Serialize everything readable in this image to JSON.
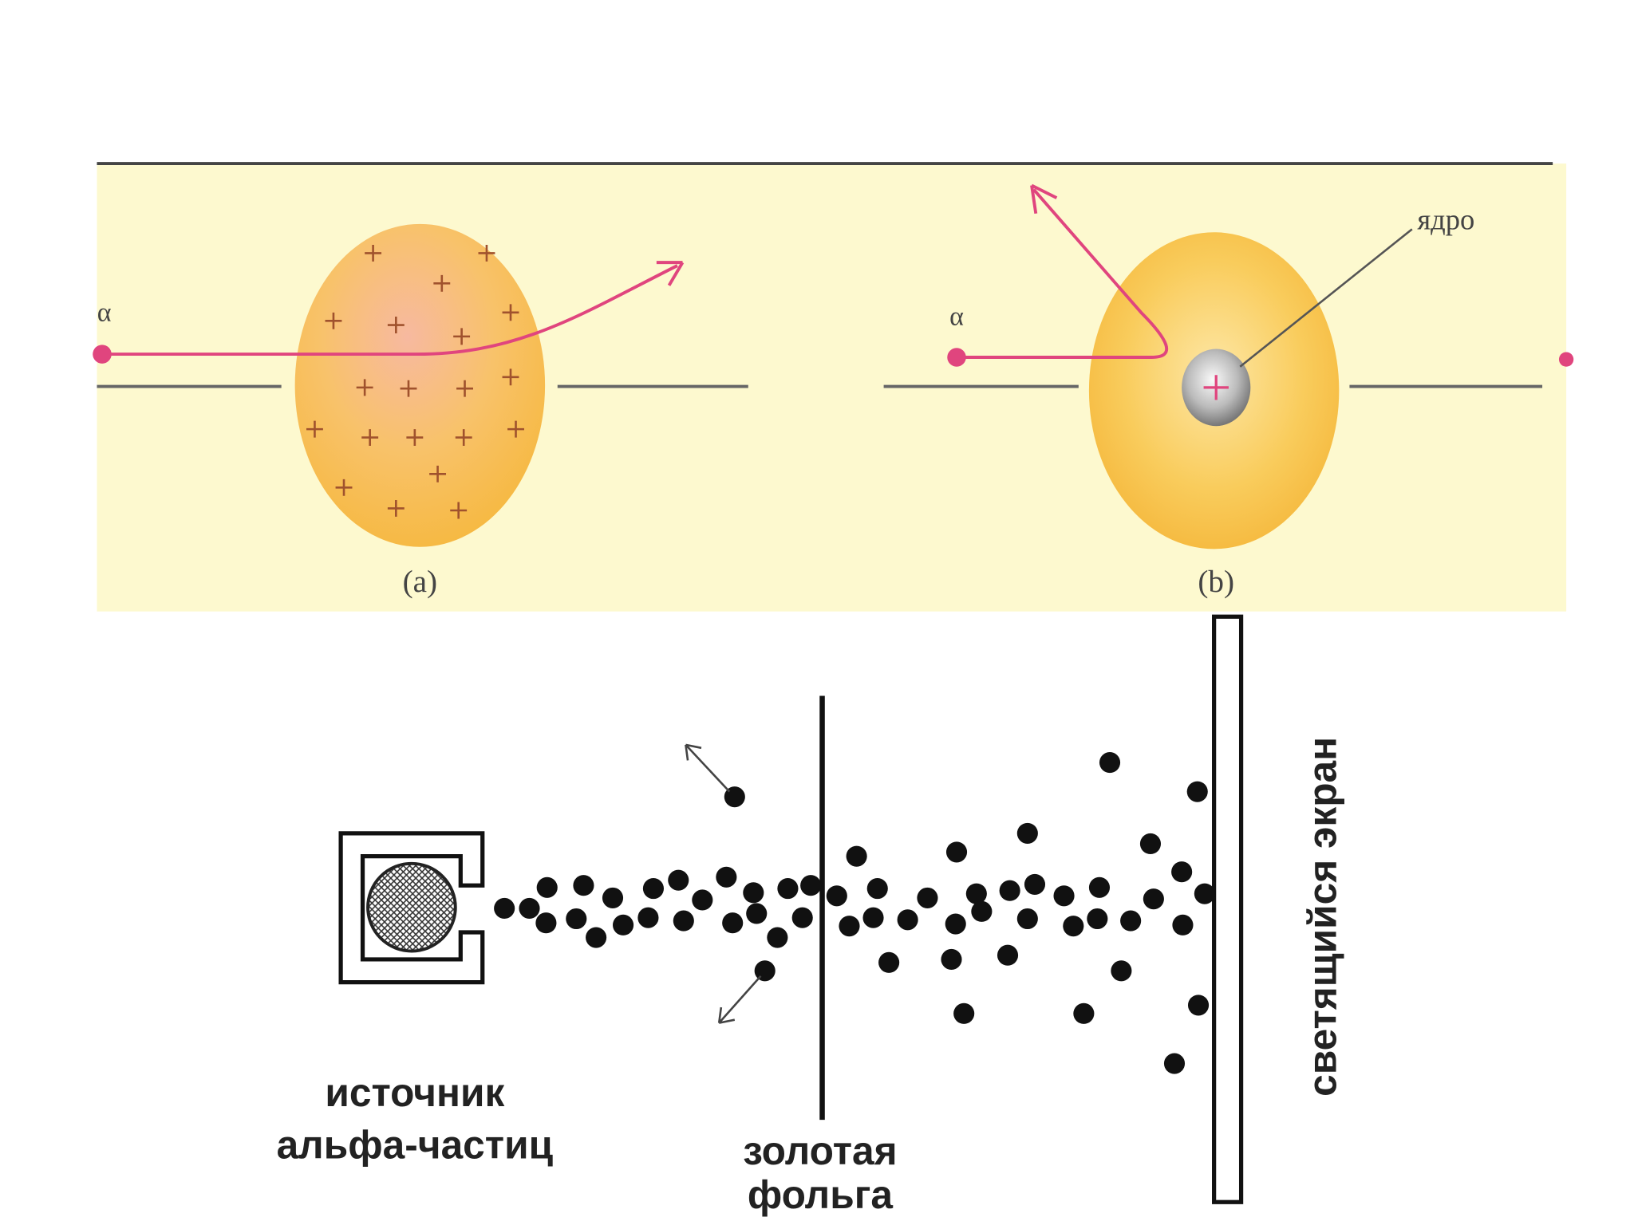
{
  "panel_a": {
    "alpha": "α",
    "caption": "(a)"
  },
  "panel_b": {
    "alpha": "α",
    "nucleus_label": "ядро",
    "caption": "(b)"
  },
  "experiment": {
    "source_label": [
      "источник",
      "альфа-частиц"
    ],
    "foil_label": [
      "золотая",
      "фольга"
    ],
    "screen_label": "светящийся экран"
  }
}
